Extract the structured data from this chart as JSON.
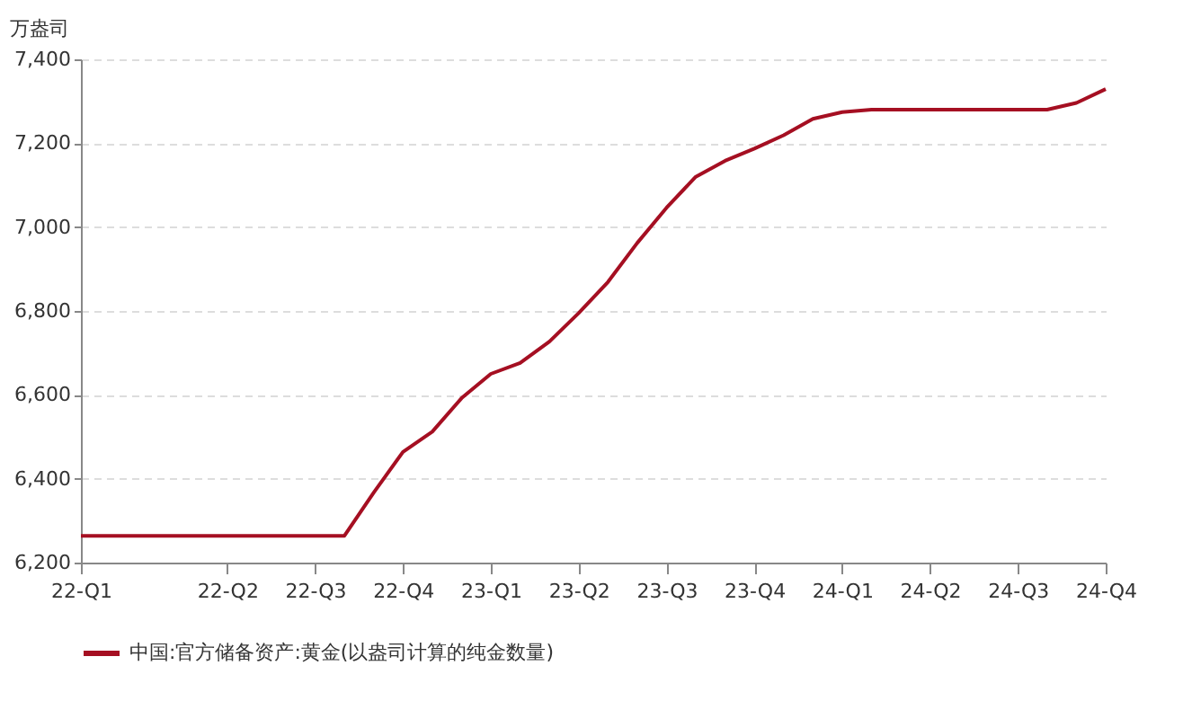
{
  "chart_data": {
    "type": "line",
    "ylabel": "万盎司",
    "categories": [
      "22-Q1",
      null,
      null,
      null,
      null,
      "22-Q2",
      null,
      null,
      "22-Q3",
      null,
      null,
      "22-Q4",
      null,
      null,
      "23-Q1",
      null,
      null,
      "23-Q2",
      null,
      null,
      "23-Q3",
      null,
      null,
      "23-Q4",
      null,
      null,
      "24-Q1",
      null,
      null,
      "24-Q2",
      null,
      null,
      "24-Q3",
      null,
      null,
      "24-Q4"
    ],
    "ylim": [
      6200,
      7400
    ],
    "yticks": [
      {
        "value": 6200,
        "label": "6,200"
      },
      {
        "value": 6400,
        "label": "6,400"
      },
      {
        "value": 6600,
        "label": "6,600"
      },
      {
        "value": 6800,
        "label": "6,800"
      },
      {
        "value": 7000,
        "label": "7,000"
      },
      {
        "value": 7200,
        "label": "7,200"
      },
      {
        "value": 7400,
        "label": "7,400"
      }
    ],
    "grid": "y",
    "legend": "bottom",
    "series": [
      {
        "name": "中国:官方储备资产:黄金(以盎司计算的纯金数量)",
        "color": "#a50f22",
        "values": [
          6264,
          6264,
          6264,
          6264,
          6264,
          6264,
          6264,
          6264,
          6264,
          6264,
          6367,
          6464,
          6512,
          6592,
          6650,
          6676,
          6727,
          6795,
          6869,
          6962,
          7046,
          7120,
          7158,
          7187,
          7219,
          7258,
          7274,
          7280,
          7280,
          7280,
          7280,
          7280,
          7280,
          7280,
          7296,
          7329
        ]
      }
    ]
  }
}
